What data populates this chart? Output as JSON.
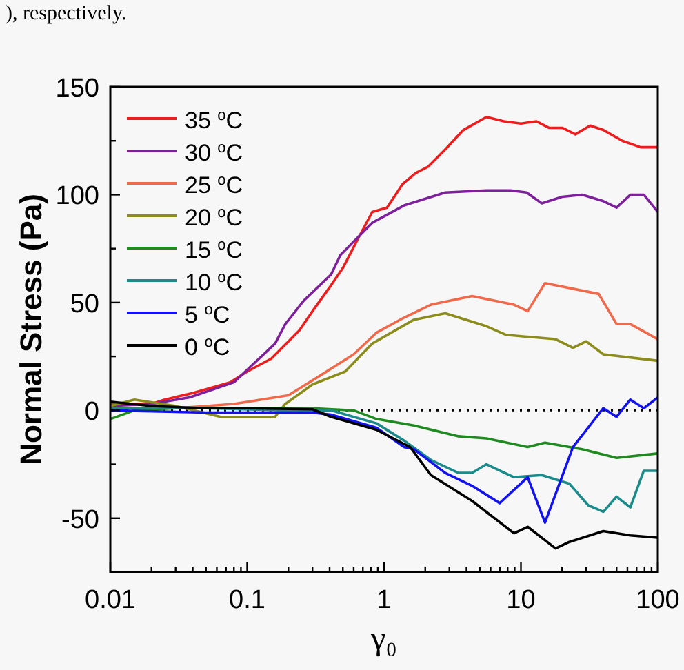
{
  "chart_data": {
    "type": "line",
    "xlabel": "γ₀",
    "ylabel": "Normal Stress (Pa)",
    "annotations": [
      "), respectively."
    ],
    "log": "x",
    "legend": "top left",
    "line_style": "solid",
    "marker": "none",
    "grid": false,
    "xlim": [
      0.01,
      100
    ],
    "ylim": [
      -75,
      150
    ],
    "xticks": [
      0.01,
      {
        "value": 0.02,
        "label": null
      },
      {
        "value": 0.03,
        "label": null
      },
      {
        "value": 0.04,
        "label": null
      },
      {
        "value": 0.05,
        "label": null
      },
      {
        "value": 0.06,
        "label": null
      },
      {
        "value": 0.07,
        "label": null
      },
      {
        "value": 0.08,
        "label": null
      },
      {
        "value": 0.09,
        "label": null
      },
      0.1,
      {
        "value": 0.2,
        "label": null
      },
      {
        "value": 0.3,
        "label": null
      },
      {
        "value": 0.4,
        "label": null
      },
      {
        "value": 0.5,
        "label": null
      },
      {
        "value": 0.6,
        "label": null
      },
      {
        "value": 0.7,
        "label": null
      },
      {
        "value": 0.8,
        "label": null
      },
      {
        "value": 0.9,
        "label": null
      },
      1,
      {
        "value": 2,
        "label": null
      },
      {
        "value": 3,
        "label": null
      },
      {
        "value": 4,
        "label": null
      },
      {
        "value": 5,
        "label": null
      },
      {
        "value": 6,
        "label": null
      },
      {
        "value": 7,
        "label": null
      },
      {
        "value": 8,
        "label": null
      },
      {
        "value": 9,
        "label": null
      },
      10,
      {
        "value": 20,
        "label": null
      },
      {
        "value": 30,
        "label": null
      },
      {
        "value": 40,
        "label": null
      },
      {
        "value": 50,
        "label": null
      },
      {
        "value": 60,
        "label": null
      },
      {
        "value": 70,
        "label": null
      },
      {
        "value": 80,
        "label": null
      },
      {
        "value": 90,
        "label": null
      },
      100
    ],
    "yticks": [
      -50,
      {
        "value": -25,
        "label": null
      },
      0,
      {
        "value": 25,
        "label": null
      },
      50,
      {
        "value": 75,
        "label": null
      },
      100,
      {
        "value": 125,
        "label": null
      },
      150
    ],
    "ref_lines": [
      {
        "axis": "y",
        "value": 0,
        "label": null,
        "color": "#000000",
        "line_style": "dotted"
      }
    ],
    "series": [
      {
        "name": "35 $^{o}$C",
        "color": "#ee1c1c",
        "x": [
          0.01,
          0.02,
          0.025,
          0.04,
          0.075,
          0.1,
          0.15,
          0.24,
          0.3,
          0.41,
          0.5,
          0.65,
          0.82,
          1.05,
          1.37,
          1.7,
          2.1,
          2.8,
          3.8,
          5.6,
          7.5,
          10,
          13,
          16,
          20,
          25,
          32,
          40,
          55,
          75,
          100
        ],
        "values": [
          3,
          3,
          5,
          8,
          13,
          18,
          24,
          37,
          46,
          58,
          66,
          80,
          92,
          94,
          105,
          110,
          113,
          121,
          130,
          136,
          134,
          133,
          134,
          131,
          131,
          128,
          132,
          130,
          125,
          122,
          122
        ]
      },
      {
        "name": "30 $^{o}$C",
        "color": "#7e1f9c",
        "x": [
          0.01,
          0.02,
          0.038,
          0.08,
          0.16,
          0.19,
          0.26,
          0.41,
          0.48,
          0.82,
          1.4,
          2.8,
          5.6,
          8.4,
          11,
          14.2,
          20,
          28,
          40,
          50,
          63,
          79,
          100
        ],
        "values": [
          2,
          3,
          6,
          13,
          31,
          40,
          51,
          63,
          72,
          87,
          95,
          101,
          102,
          102,
          101,
          96,
          99,
          100,
          97,
          94,
          100,
          100,
          92
        ]
      },
      {
        "name": "25 $^{o}$C",
        "color": "#f0694a",
        "x": [
          0.01,
          0.03,
          0.08,
          0.2,
          0.32,
          0.6,
          0.88,
          1.4,
          2.2,
          4.4,
          8.9,
          11.2,
          15,
          37,
          50,
          63,
          100
        ],
        "values": [
          1,
          1,
          3,
          7,
          15,
          26,
          36,
          43,
          49,
          53,
          49,
          46,
          59,
          54,
          40,
          40,
          33
        ]
      },
      {
        "name": "20 $^{o}$C",
        "color": "#8c8c1c",
        "x": [
          0.01,
          0.015,
          0.03,
          0.064,
          0.16,
          0.19,
          0.3,
          0.52,
          0.82,
          1.65,
          2.8,
          5.6,
          7.8,
          17.9,
          24,
          30,
          40,
          100
        ],
        "values": [
          2,
          5,
          2,
          -3,
          -3,
          3,
          12,
          18,
          31,
          42,
          45,
          39,
          35,
          33,
          29,
          32,
          26,
          23
        ]
      },
      {
        "name": "15 $^{o}$C",
        "color": "#1f8a1f",
        "x": [
          0.01,
          0.015,
          0.03,
          0.1,
          0.3,
          0.6,
          0.88,
          1.65,
          3.5,
          5.6,
          11.2,
          15,
          28,
          50,
          100
        ],
        "values": [
          -4,
          0,
          1,
          1,
          1,
          0,
          -4,
          -7,
          -12,
          -13,
          -17,
          -15,
          -18,
          -22,
          -20
        ]
      },
      {
        "name": "10 $^{o}$C",
        "color": "#1b8a8a",
        "x": [
          0.01,
          0.05,
          0.2,
          0.41,
          0.88,
          1.4,
          2.2,
          3.5,
          4.4,
          5.6,
          8.9,
          14.2,
          22.6,
          31,
          40,
          50,
          63,
          79,
          100
        ],
        "values": [
          1,
          1,
          0,
          0,
          -6,
          -14,
          -23,
          -29,
          -29,
          -25,
          -31,
          -30,
          -34,
          -44,
          -47,
          -40,
          -45,
          -28,
          -28
        ]
      },
      {
        "name": "5 $^{o}$C",
        "color": "#1212ee",
        "x": [
          0.01,
          0.05,
          0.3,
          0.41,
          0.88,
          1.4,
          1.65,
          2.8,
          4.4,
          7,
          11.2,
          15,
          24,
          40,
          50,
          63,
          79,
          100
        ],
        "values": [
          0,
          -1,
          -1,
          -2,
          -8,
          -17,
          -18,
          -29,
          -35,
          -43,
          -31,
          -52,
          -17,
          1,
          -3,
          5,
          1,
          6
        ]
      },
      {
        "name": "0 $^{o}$C",
        "color": "#000000",
        "x": [
          0.01,
          0.02,
          0.05,
          0.1,
          0.3,
          0.41,
          0.88,
          1.55,
          2.2,
          4.4,
          8.9,
          11.2,
          17.9,
          22.6,
          40,
          63,
          100
        ],
        "values": [
          4,
          2,
          1,
          1,
          0.5,
          -3,
          -9,
          -17,
          -30,
          -42,
          -57,
          -54,
          -64,
          -61,
          -56,
          -58,
          -59
        ]
      }
    ]
  }
}
